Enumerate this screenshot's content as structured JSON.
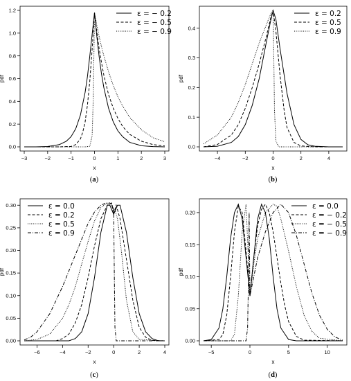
{
  "chart_data": [
    {
      "id": "a",
      "caption": "a",
      "type": "line",
      "xlabel": "x",
      "ylabel": "pdf",
      "xlim": [
        -3,
        3
      ],
      "ylim": [
        0,
        1.2
      ],
      "xticks": [
        -3,
        -2,
        -1,
        0,
        1,
        2,
        3
      ],
      "yticks": [
        0.0,
        0.2,
        0.4,
        0.6,
        0.8,
        1.0,
        1.2
      ],
      "ytick_labels": [
        "0.0",
        "0.2",
        "0.4",
        "0.6",
        "0.8",
        "1.0",
        "1.2"
      ],
      "legend_position": "top-right",
      "series": [
        {
          "name": "ε = − 0.2",
          "style": "solid",
          "x": [
            -3,
            -2.5,
            -2,
            -1.5,
            -1.2,
            -1,
            -0.8,
            -0.6,
            -0.4,
            -0.3,
            -0.2,
            -0.1,
            0,
            0.1,
            0.2,
            0.3,
            0.4,
            0.6,
            0.8,
            1,
            1.2,
            1.5,
            2,
            2.5,
            3
          ],
          "y": [
            0.0,
            0.0,
            0.003,
            0.02,
            0.05,
            0.09,
            0.16,
            0.28,
            0.48,
            0.62,
            0.8,
            0.99,
            1.18,
            0.97,
            0.79,
            0.64,
            0.52,
            0.34,
            0.22,
            0.14,
            0.09,
            0.04,
            0.01,
            0.002,
            0.0
          ]
        },
        {
          "name": "ε = − 0.5",
          "style": "dashed",
          "x": [
            -3,
            -1.5,
            -1,
            -0.8,
            -0.6,
            -0.5,
            -0.4,
            -0.3,
            -0.2,
            -0.1,
            0,
            0.1,
            0.2,
            0.3,
            0.4,
            0.6,
            0.8,
            1,
            1.2,
            1.5,
            2,
            2.5,
            3
          ],
          "y": [
            0.0,
            0.0,
            0.004,
            0.02,
            0.07,
            0.13,
            0.22,
            0.37,
            0.58,
            0.86,
            1.18,
            1.01,
            0.86,
            0.74,
            0.63,
            0.46,
            0.34,
            0.25,
            0.18,
            0.11,
            0.05,
            0.02,
            0.008
          ]
        },
        {
          "name": "ε = − 0.9",
          "style": "dotted",
          "x": [
            -3,
            -0.4,
            -0.2,
            -0.1,
            -0.05,
            0,
            0.1,
            0.2,
            0.3,
            0.4,
            0.6,
            0.8,
            1,
            1.2,
            1.5,
            2,
            2.5,
            3
          ],
          "y": [
            0.0,
            0.0,
            0.005,
            0.1,
            0.45,
            1.18,
            1.07,
            0.97,
            0.88,
            0.8,
            0.66,
            0.54,
            0.44,
            0.36,
            0.26,
            0.15,
            0.08,
            0.045
          ]
        }
      ]
    },
    {
      "id": "b",
      "caption": "b",
      "type": "line",
      "xlabel": "x",
      "ylabel": "pdf",
      "xlim": [
        -5,
        5
      ],
      "ylim": [
        0,
        0.46
      ],
      "xticks": [
        -4,
        -2,
        0,
        2,
        4
      ],
      "yticks": [
        0.0,
        0.1,
        0.2,
        0.3,
        0.4
      ],
      "ytick_labels": [
        "0.0",
        "0.1",
        "0.2",
        "0.3",
        "0.4"
      ],
      "legend_position": "top-right",
      "series": [
        {
          "name": "ε = 0.2",
          "style": "solid",
          "x": [
            -5,
            -4,
            -3,
            -2.5,
            -2,
            -1.5,
            -1,
            -0.5,
            -0.2,
            0,
            0.2,
            0.5,
            1,
            1.5,
            2,
            2.5,
            3,
            4,
            5
          ],
          "y": [
            0.0,
            0.002,
            0.015,
            0.035,
            0.075,
            0.14,
            0.23,
            0.35,
            0.42,
            0.46,
            0.43,
            0.33,
            0.18,
            0.075,
            0.025,
            0.007,
            0.002,
            0.0,
            0.0
          ]
        },
        {
          "name": "ε = 0.5",
          "style": "dashed",
          "x": [
            -5,
            -4,
            -3,
            -2.5,
            -2,
            -1.5,
            -1,
            -0.5,
            -0.2,
            0,
            0.2,
            0.5,
            0.8,
            1,
            1.5,
            2,
            3,
            5
          ],
          "y": [
            0.0,
            0.008,
            0.04,
            0.075,
            0.13,
            0.2,
            0.28,
            0.37,
            0.43,
            0.46,
            0.39,
            0.24,
            0.12,
            0.065,
            0.015,
            0.003,
            0.0,
            0.0
          ]
        },
        {
          "name": "ε = 0.9",
          "style": "dotted",
          "x": [
            -5,
            -4,
            -3,
            -2.5,
            -2,
            -1.5,
            -1,
            -0.5,
            -0.2,
            -0.1,
            0,
            0.05,
            0.1,
            0.2,
            0.4,
            5
          ],
          "y": [
            0.01,
            0.04,
            0.1,
            0.15,
            0.21,
            0.28,
            0.35,
            0.41,
            0.445,
            0.455,
            0.46,
            0.3,
            0.12,
            0.02,
            0.0,
            0.0
          ]
        }
      ]
    },
    {
      "id": "c",
      "caption": "c",
      "type": "line",
      "xlabel": "x",
      "ylabel": "pdf",
      "xlim": [
        -7,
        4
      ],
      "ylim": [
        0,
        0.305
      ],
      "xticks": [
        -6,
        -4,
        -2,
        0,
        2,
        4
      ],
      "yticks": [
        0.0,
        0.05,
        0.1,
        0.15,
        0.2,
        0.25,
        0.3
      ],
      "ytick_labels": [
        "0.00",
        "0.05",
        "0.10",
        "0.15",
        "0.20",
        "0.25",
        "0.30"
      ],
      "legend_position": "top-left",
      "series": [
        {
          "name": "ε = 0.0",
          "style": "solid",
          "x": [
            -7,
            -3.5,
            -3,
            -2.5,
            -2,
            -1.5,
            -1,
            -0.5,
            -0.3,
            0,
            0.3,
            0.5,
            1,
            1.5,
            2,
            2.5,
            3,
            3.5,
            4
          ],
          "y": [
            0.0,
            0.0,
            0.005,
            0.02,
            0.06,
            0.14,
            0.24,
            0.3,
            0.3,
            0.28,
            0.3,
            0.3,
            0.24,
            0.14,
            0.06,
            0.02,
            0.005,
            0.0,
            0.0
          ]
        },
        {
          "name": "ε = 0.2",
          "style": "dashed",
          "x": [
            -7,
            -4.5,
            -4,
            -3.5,
            -3,
            -2.5,
            -2,
            -1.5,
            -1,
            -0.5,
            -0.15,
            0,
            0.2,
            0.5,
            1,
            1.5,
            2,
            2.5,
            3,
            4
          ],
          "y": [
            0.0,
            0.0,
            0.005,
            0.015,
            0.04,
            0.08,
            0.14,
            0.21,
            0.27,
            0.3,
            0.305,
            0.28,
            0.3,
            0.27,
            0.18,
            0.09,
            0.03,
            0.008,
            0.001,
            0.0
          ]
        },
        {
          "name": "ε = 0.5",
          "style": "dotted",
          "x": [
            -7,
            -6,
            -5,
            -4,
            -3.5,
            -3,
            -2.5,
            -2,
            -1.5,
            -1,
            -0.5,
            -0.2,
            -0.05,
            0,
            0.1,
            0.3,
            0.6,
            1,
            1.5,
            2,
            4
          ],
          "y": [
            0.0,
            0.003,
            0.015,
            0.05,
            0.08,
            0.12,
            0.17,
            0.22,
            0.265,
            0.295,
            0.305,
            0.3,
            0.29,
            0.28,
            0.29,
            0.27,
            0.2,
            0.09,
            0.02,
            0.003,
            0.0
          ]
        },
        {
          "name": "ε = 0.9",
          "style": "dashdot",
          "x": [
            -7,
            -6.5,
            -6,
            -5,
            -4,
            -3,
            -2.5,
            -2,
            -1.5,
            -1,
            -0.6,
            -0.3,
            -0.1,
            0,
            0.05,
            0.1,
            0.2,
            0.4,
            4
          ],
          "y": [
            0.002,
            0.008,
            0.02,
            0.06,
            0.12,
            0.19,
            0.225,
            0.26,
            0.285,
            0.3,
            0.305,
            0.305,
            0.3,
            0.29,
            0.15,
            0.03,
            0.0,
            0.0,
            0.0
          ]
        }
      ]
    },
    {
      "id": "d",
      "caption": "d",
      "type": "line",
      "xlabel": "x",
      "ylabel": "pdf",
      "xlim": [
        -6,
        12
      ],
      "ylim": [
        0,
        0.215
      ],
      "xticks": [
        -5,
        0,
        5,
        10
      ],
      "yticks": [
        0.0,
        0.05,
        0.1,
        0.15,
        0.2
      ],
      "ytick_labels": [
        "0.00",
        "0.05",
        "0.10",
        "0.15",
        "0.20"
      ],
      "legend_position": "top-right",
      "series": [
        {
          "name": "ε = 0.0",
          "style": "solid",
          "x": [
            -6,
            -5,
            -4,
            -3.5,
            -3,
            -2.5,
            -2,
            -1.5,
            -1,
            -0.5,
            0,
            0.5,
            1,
            1.5,
            2,
            2.5,
            3,
            3.5,
            4,
            5,
            6,
            12
          ],
          "y": [
            0.0,
            0.002,
            0.02,
            0.05,
            0.1,
            0.16,
            0.2,
            0.213,
            0.19,
            0.13,
            0.07,
            0.13,
            0.19,
            0.213,
            0.2,
            0.16,
            0.1,
            0.05,
            0.02,
            0.002,
            0.0,
            0.0
          ]
        },
        {
          "name": "ε = − 0.2",
          "style": "dashed",
          "x": [
            -6,
            -4,
            -3.5,
            -3,
            -2.5,
            -2,
            -1.5,
            -1,
            -0.5,
            0,
            0.5,
            1,
            1.5,
            2,
            2.5,
            3,
            3.5,
            4,
            4.5,
            5,
            6,
            7,
            12
          ],
          "y": [
            0.0,
            0.002,
            0.01,
            0.04,
            0.1,
            0.17,
            0.21,
            0.2,
            0.14,
            0.07,
            0.13,
            0.18,
            0.205,
            0.213,
            0.2,
            0.17,
            0.13,
            0.09,
            0.055,
            0.03,
            0.007,
            0.001,
            0.0
          ]
        },
        {
          "name": "ε = − 0.5",
          "style": "dotted",
          "x": [
            -6,
            -2.5,
            -2,
            -1.5,
            -1,
            -0.5,
            0,
            0.5,
            1,
            2,
            3,
            3.5,
            4,
            5,
            6,
            7,
            8,
            9,
            12
          ],
          "y": [
            0.0,
            0.0,
            0.01,
            0.07,
            0.17,
            0.213,
            0.07,
            0.12,
            0.16,
            0.2,
            0.213,
            0.21,
            0.19,
            0.14,
            0.085,
            0.04,
            0.015,
            0.004,
            0.0
          ]
        },
        {
          "name": "ε = − 0.9",
          "style": "dashdot",
          "x": [
            -6,
            -0.5,
            -0.3,
            -0.2,
            -0.1,
            0,
            0.5,
            1,
            2,
            3,
            4,
            5,
            6,
            7,
            8,
            9,
            10,
            11,
            12
          ],
          "y": [
            0.0,
            0.0,
            0.02,
            0.09,
            0.2,
            0.07,
            0.1,
            0.13,
            0.17,
            0.2,
            0.213,
            0.2,
            0.165,
            0.12,
            0.075,
            0.04,
            0.018,
            0.006,
            0.001
          ]
        }
      ]
    }
  ]
}
